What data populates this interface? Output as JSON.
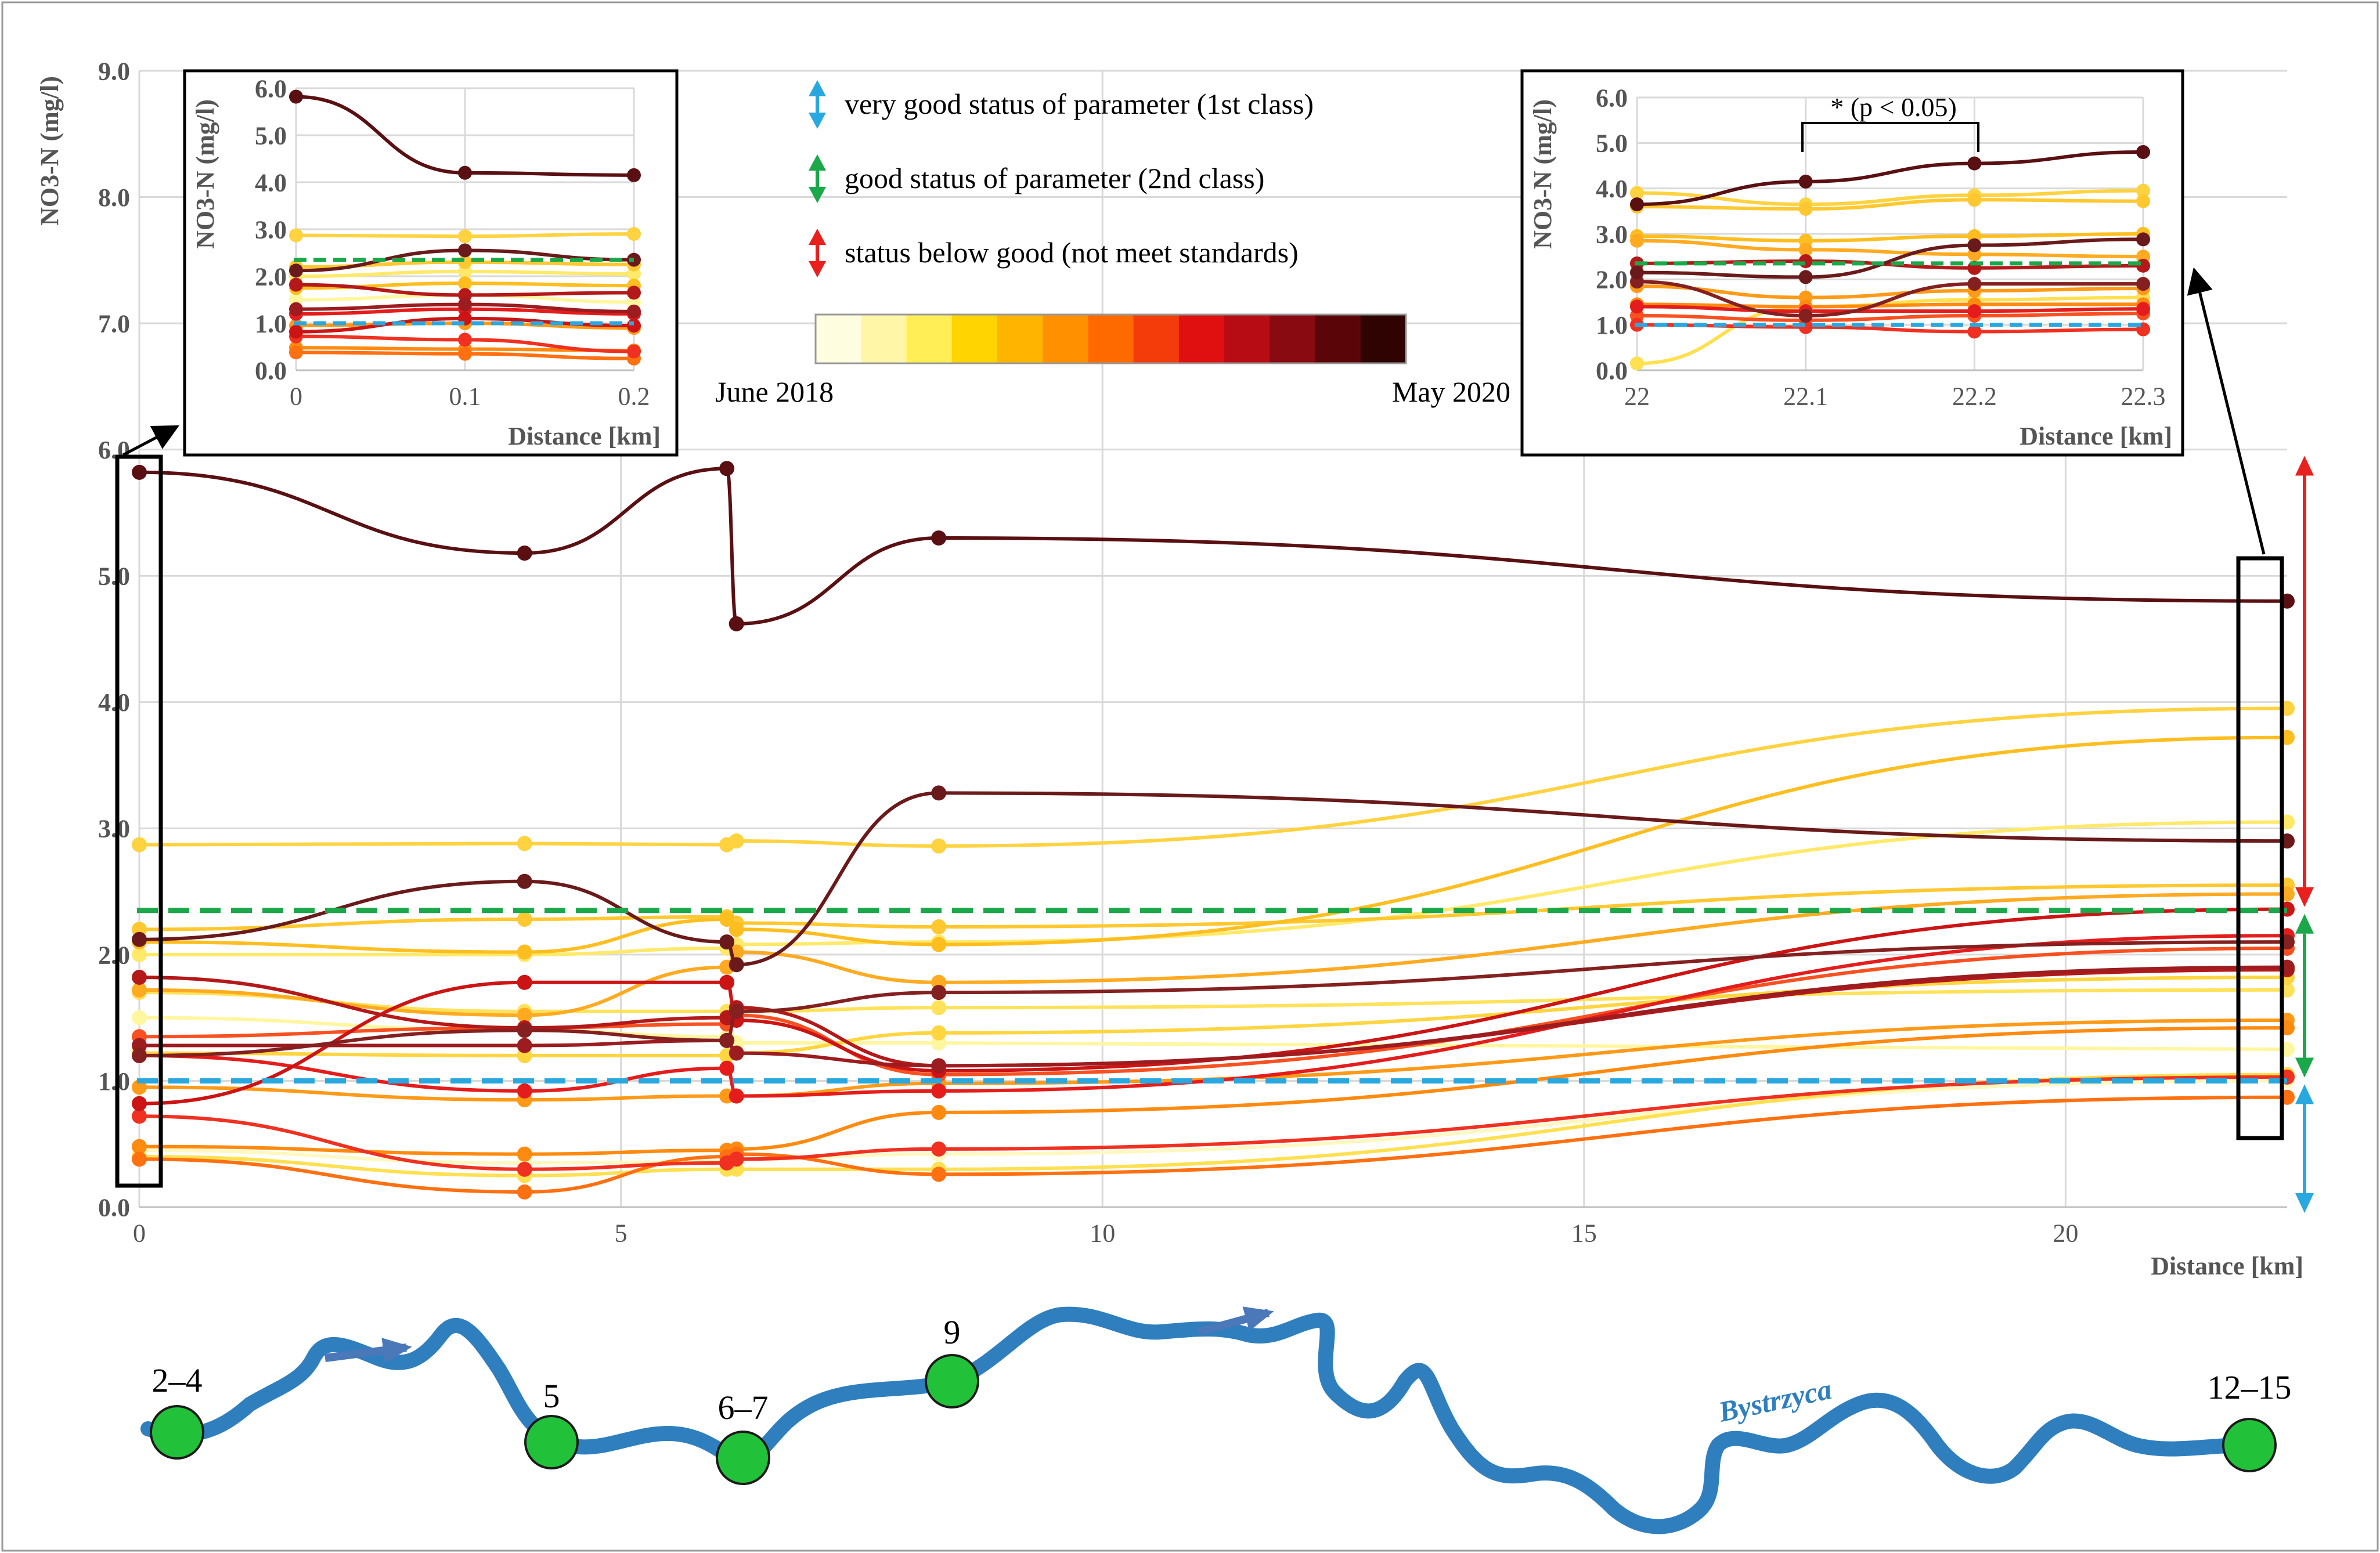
{
  "colors": {
    "good_status_line": "#1aa84a",
    "very_good_status_line": "#29a8e0",
    "below_good_arrow": "#e8201e",
    "river": "#2f7fbf",
    "site_marker": "#21c23a",
    "flow_arrow": "#4a78b8"
  },
  "legend": {
    "very_good": "very good status of parameter (1st class)",
    "good": "good status of parameter (2nd class)",
    "below_good": "status below good (not meet standards)",
    "gradient_start": "June 2018",
    "gradient_end": "May 2020",
    "gradient_colors": [
      "#fffde0",
      "#fff6a8",
      "#ffee55",
      "#ffd400",
      "#ffb400",
      "#ff9000",
      "#ff6a00",
      "#f43c0a",
      "#e01010",
      "#b80c14",
      "#8a0a12",
      "#5a0608",
      "#2e0302"
    ]
  },
  "chart_data": [
    {
      "type": "line",
      "title": "",
      "xlabel": "Distance [km]",
      "ylabel": "NO3-N (mg/l)",
      "xlim": [
        0,
        22.3
      ],
      "ylim": [
        0,
        9
      ],
      "x_ticks": [
        "0",
        "5",
        "10",
        "15",
        "20"
      ],
      "x_tick_values": [
        0,
        5,
        10,
        15,
        20
      ],
      "y_ticks": [
        "0.0",
        "1.0",
        "2.0",
        "3.0",
        "4.0",
        "5.0",
        "6.0",
        "7.0",
        "8.0",
        "9.0"
      ],
      "grid": true,
      "thresholds": {
        "good": 2.35,
        "very_good": 1.0
      },
      "x": [
        0,
        4,
        6.1,
        6.2,
        8.3,
        22.3
      ],
      "series": [
        {
          "color": "#fff8c0",
          "values": [
            0.45,
            0.35,
            0.36,
            0.38,
            0.42,
            1.0
          ]
        },
        {
          "color": "#fff6a0",
          "values": [
            1.5,
            1.4,
            1.35,
            1.3,
            1.3,
            1.25
          ]
        },
        {
          "color": "#ffe96a",
          "values": [
            2.0,
            2.0,
            2.05,
            2.08,
            2.1,
            3.05
          ]
        },
        {
          "color": "#ffe050",
          "values": [
            0.4,
            0.25,
            0.3,
            0.3,
            0.3,
            1.05
          ]
        },
        {
          "color": "#ffd240",
          "values": [
            2.87,
            2.88,
            2.87,
            2.9,
            2.86,
            3.95
          ]
        },
        {
          "color": "#ffe25a",
          "values": [
            1.7,
            1.55,
            1.55,
            1.55,
            1.58,
            1.72
          ]
        },
        {
          "color": "#ffc830",
          "values": [
            2.2,
            2.28,
            2.3,
            2.25,
            2.22,
            2.55
          ]
        },
        {
          "color": "#ffd540",
          "values": [
            1.22,
            1.2,
            1.2,
            1.22,
            1.38,
            1.82
          ]
        },
        {
          "color": "#ffbe20",
          "values": [
            2.1,
            2.02,
            2.28,
            2.2,
            2.08,
            3.72
          ]
        },
        {
          "color": "#ffaa20",
          "values": [
            1.72,
            1.52,
            1.9,
            2.02,
            1.78,
            2.48
          ]
        },
        {
          "color": "#ff9a18",
          "values": [
            0.95,
            0.85,
            0.88,
            0.88,
            0.98,
            1.48
          ]
        },
        {
          "color": "#ff8a10",
          "values": [
            0.48,
            0.42,
            0.45,
            0.46,
            0.75,
            1.42
          ]
        },
        {
          "color": "#ff7010",
          "values": [
            0.38,
            0.12,
            0.4,
            0.42,
            0.26,
            0.87
          ]
        },
        {
          "color": "#f85020",
          "values": [
            1.35,
            1.42,
            1.45,
            1.52,
            1.05,
            2.05
          ]
        },
        {
          "color": "#f03020",
          "values": [
            0.72,
            0.3,
            0.35,
            0.38,
            0.46,
            1.03
          ]
        },
        {
          "color": "#e51c1c",
          "values": [
            1.2,
            0.92,
            1.1,
            0.88,
            0.92,
            2.15
          ]
        },
        {
          "color": "#cc1414",
          "values": [
            0.82,
            1.78,
            1.78,
            1.48,
            1.08,
            2.36
          ]
        },
        {
          "color": "#b41818",
          "values": [
            1.82,
            1.42,
            1.5,
            1.58,
            1.12,
            1.88
          ]
        },
        {
          "color": "#9c1c20",
          "values": [
            1.28,
            1.28,
            1.32,
            1.22,
            1.12,
            1.9
          ]
        },
        {
          "color": "#852020",
          "values": [
            1.2,
            1.4,
            1.32,
            1.55,
            1.7,
            2.1
          ]
        },
        {
          "color": "#6a1a1a",
          "values": [
            2.12,
            2.58,
            2.1,
            1.92,
            3.28,
            2.9
          ]
        },
        {
          "color": "#5a1012",
          "values": [
            5.82,
            5.18,
            5.85,
            4.62,
            5.3,
            4.8
          ]
        }
      ]
    },
    {
      "type": "line",
      "title": "",
      "xlabel": "Distance [km]",
      "ylabel": "NO3-N (mg/l)",
      "xlim": [
        0,
        0.2
      ],
      "ylim": [
        0,
        6
      ],
      "x_ticks": [
        "0",
        "0.1",
        "0.2"
      ],
      "y_ticks": [
        "0.0",
        "1.0",
        "2.0",
        "3.0",
        "4.0",
        "5.0",
        "6.0"
      ],
      "thresholds": {
        "good": 2.35,
        "very_good": 1.0
      },
      "x": [
        0,
        0.1,
        0.2
      ],
      "series": [
        {
          "color": "#fff6a0",
          "values": [
            1.5,
            1.6,
            1.45
          ]
        },
        {
          "color": "#ffe96a",
          "values": [
            2.0,
            2.1,
            2.05
          ]
        },
        {
          "color": "#ffd240",
          "values": [
            2.87,
            2.85,
            2.9
          ]
        },
        {
          "color": "#ffc830",
          "values": [
            2.2,
            2.3,
            2.25
          ]
        },
        {
          "color": "#ffbe20",
          "values": [
            1.75,
            1.85,
            1.8
          ]
        },
        {
          "color": "#ff9a18",
          "values": [
            0.95,
            1.0,
            0.9
          ]
        },
        {
          "color": "#ff8a10",
          "values": [
            0.48,
            0.45,
            0.42
          ]
        },
        {
          "color": "#ff7010",
          "values": [
            0.38,
            0.35,
            0.25
          ]
        },
        {
          "color": "#f03020",
          "values": [
            0.72,
            0.65,
            0.4
          ]
        },
        {
          "color": "#e51c1c",
          "values": [
            1.2,
            1.3,
            1.2
          ]
        },
        {
          "color": "#cc1414",
          "values": [
            0.82,
            1.1,
            0.95
          ]
        },
        {
          "color": "#b41818",
          "values": [
            1.82,
            1.6,
            1.65
          ]
        },
        {
          "color": "#9c1c20",
          "values": [
            1.3,
            1.4,
            1.25
          ]
        },
        {
          "color": "#6a1a1a",
          "values": [
            2.12,
            2.55,
            2.35
          ]
        },
        {
          "color": "#5a1012",
          "values": [
            5.82,
            4.2,
            4.15
          ]
        }
      ]
    },
    {
      "type": "line",
      "title": "",
      "xlabel": "Distance [km]",
      "ylabel": "NO3-N (mg/l)",
      "xlim": [
        22,
        22.3
      ],
      "ylim": [
        0,
        6
      ],
      "x_ticks": [
        "22",
        "22.1",
        "22.2",
        "22.3"
      ],
      "y_ticks": [
        "0.0",
        "1.0",
        "2.0",
        "3.0",
        "4.0",
        "5.0",
        "6.0"
      ],
      "thresholds": {
        "good": 2.35,
        "very_good": 1.0
      },
      "annotation": "* (p < 0.05)",
      "x": [
        22,
        22.1,
        22.2,
        22.3
      ],
      "series": [
        {
          "color": "#ffe050",
          "values": [
            0.15,
            1.4,
            1.55,
            1.6
          ]
        },
        {
          "color": "#ffd240",
          "values": [
            3.9,
            3.65,
            3.85,
            3.95
          ]
        },
        {
          "color": "#ffc830",
          "values": [
            3.6,
            3.55,
            3.75,
            3.72
          ]
        },
        {
          "color": "#ffbe20",
          "values": [
            2.95,
            2.85,
            2.95,
            3.0
          ]
        },
        {
          "color": "#ffaa20",
          "values": [
            2.85,
            2.65,
            2.55,
            2.5
          ]
        },
        {
          "color": "#ff9a18",
          "values": [
            1.85,
            1.6,
            1.75,
            1.8
          ]
        },
        {
          "color": "#ff8a10",
          "values": [
            1.45,
            1.4,
            1.45,
            1.45
          ]
        },
        {
          "color": "#f85020",
          "values": [
            1.2,
            1.1,
            1.2,
            1.25
          ]
        },
        {
          "color": "#f03020",
          "values": [
            1.0,
            0.95,
            0.85,
            0.9
          ]
        },
        {
          "color": "#e51c1c",
          "values": [
            1.4,
            1.3,
            1.3,
            1.35
          ]
        },
        {
          "color": "#b41818",
          "values": [
            2.35,
            2.4,
            2.25,
            2.3
          ]
        },
        {
          "color": "#852020",
          "values": [
            1.95,
            1.2,
            1.9,
            1.9
          ]
        },
        {
          "color": "#6a1a1a",
          "values": [
            2.15,
            2.05,
            2.75,
            2.88
          ]
        },
        {
          "color": "#5a1012",
          "values": [
            3.65,
            4.15,
            4.55,
            4.8
          ]
        }
      ]
    }
  ],
  "river_map": {
    "river_name": "Bystrzyca",
    "sites": [
      {
        "label": "2–4"
      },
      {
        "label": "5"
      },
      {
        "label": "6–7"
      },
      {
        "label": "9"
      },
      {
        "label": "12–15"
      }
    ]
  }
}
